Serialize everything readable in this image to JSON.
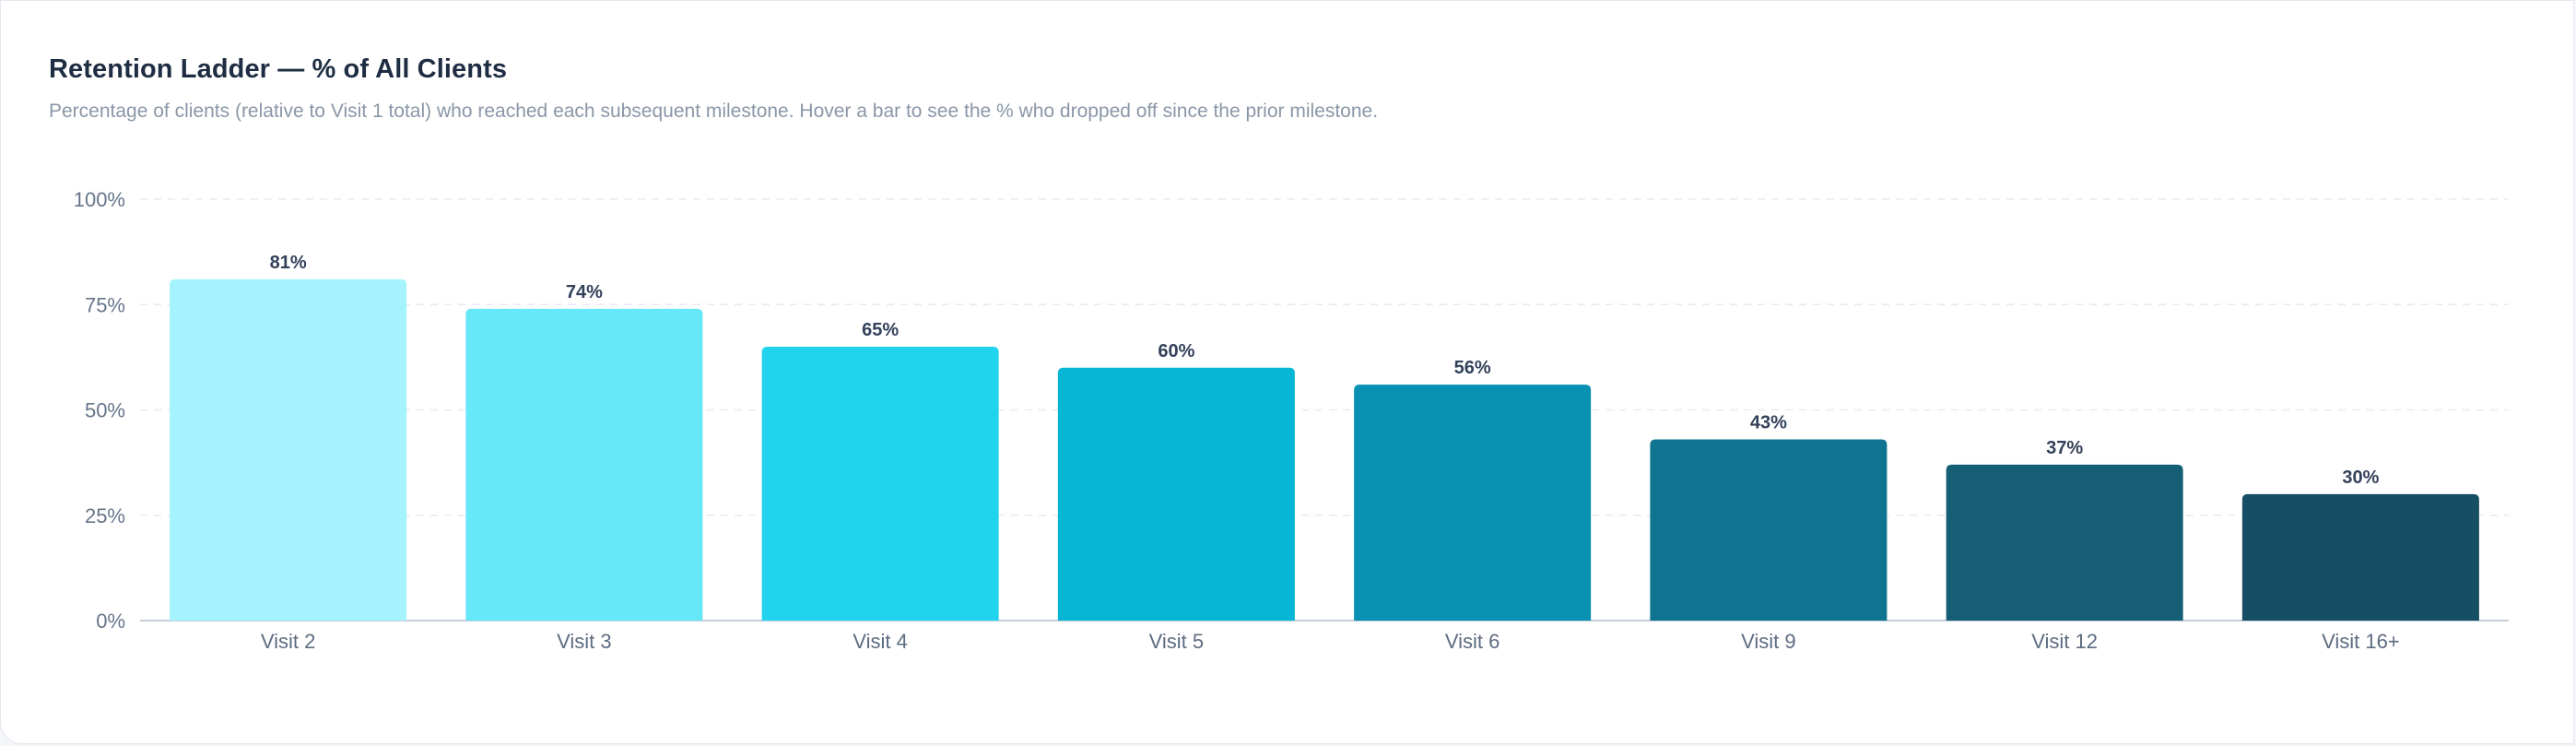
{
  "card": {
    "title": "Retention Ladder — % of All Clients",
    "subtitle": "Percentage of clients (relative to Visit 1 total) who reached each subsequent milestone. Hover a bar to see the % who dropped off since the prior milestone."
  },
  "chart_data": {
    "type": "bar",
    "title": "Retention Ladder — % of All Clients",
    "xlabel": "",
    "ylabel": "",
    "categories": [
      "Visit 2",
      "Visit 3",
      "Visit 4",
      "Visit 5",
      "Visit 6",
      "Visit 9",
      "Visit 12",
      "Visit 16+"
    ],
    "values": [
      81,
      74,
      65,
      60,
      56,
      43,
      37,
      30
    ],
    "value_labels": [
      "81%",
      "74%",
      "65%",
      "60%",
      "56%",
      "43%",
      "37%",
      "30%"
    ],
    "ylim": [
      0,
      100
    ],
    "yticks": [
      0,
      25,
      50,
      75,
      100
    ],
    "ytick_labels": [
      "0%",
      "25%",
      "50%",
      "75%",
      "100%"
    ],
    "grid": true,
    "legend": "none",
    "colors": [
      "#a5f3fc",
      "#67e8f9",
      "#22d3ee",
      "#06b6d4",
      "#0891b2",
      "#0e7490",
      "#155e75",
      "#164e63"
    ]
  }
}
